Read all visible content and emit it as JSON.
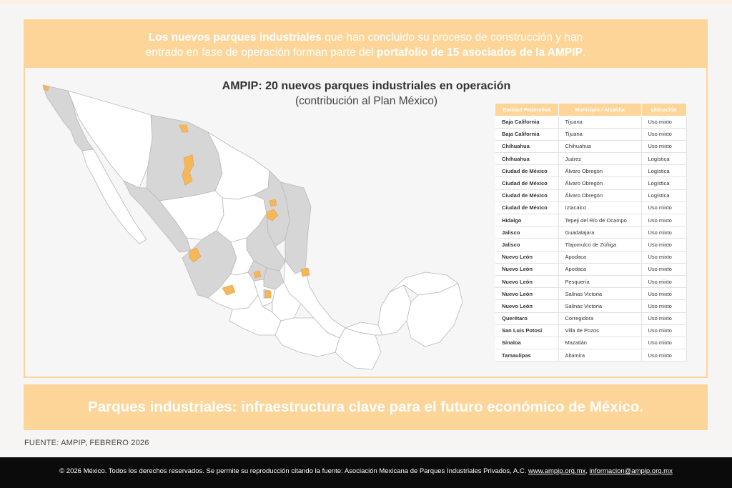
{
  "banner": {
    "bold1": "Los nuevos parques industriales",
    "text1": " que han concluido su proceso de construcción y han",
    "text2": "entrado en fase de operación forman parte del ",
    "bold2": "portafolio de 15 asociados de la AMPIP",
    "end": "."
  },
  "map": {
    "title": "AMPIP: 20 nuevos parques industriales en operación",
    "subtitle": "(contribución al Plan México)",
    "colors": {
      "highlight_state": "#d6d6d6",
      "park": "#f6b75b",
      "base": "#ffffff",
      "border": "#b8b8b8"
    }
  },
  "table": {
    "headers": [
      "Entidad Federativa",
      "Municipio / Alcaldía",
      "Ubicación"
    ],
    "rows": [
      [
        "Baja California",
        "Tijuana",
        "Uso mixto"
      ],
      [
        "Baja California",
        "Tijuana",
        "Uso mixto"
      ],
      [
        "Chihuahua",
        "Chihuahua",
        "Uso mixto"
      ],
      [
        "Chihuahua",
        "Juárez",
        "Logística"
      ],
      [
        "Ciudad de México",
        "Álvaro Obregón",
        "Logística"
      ],
      [
        "Ciudad de México",
        "Álvaro Obregón",
        "Logística"
      ],
      [
        "Ciudad de México",
        "Álvaro Obregón",
        "Logística"
      ],
      [
        "Ciudad de México",
        "Iztacalco",
        "Uso mixto"
      ],
      [
        "Hidalgo",
        "Tepeji del Río de Ocampo",
        "Uso mixto"
      ],
      [
        "Jalisco",
        "Guadalajara",
        "Uso mixto"
      ],
      [
        "Jalisco",
        "Tlajomulco de Zúñiga",
        "Uso mixto"
      ],
      [
        "Nuevo León",
        "Apodaca",
        "Uso mixto"
      ],
      [
        "Nuevo León",
        "Apodaca",
        "Uso mixto"
      ],
      [
        "Nuevo León",
        "Pesquería",
        "Uso mixto"
      ],
      [
        "Nuevo León",
        "Salinas Victoria",
        "Uso mixto"
      ],
      [
        "Nuevo León",
        "Salinas Victoria",
        "Uso mixto"
      ],
      [
        "Querétaro",
        "Corregidora",
        "Uso mixto"
      ],
      [
        "San Luis Potosí",
        "Villa de Pozos",
        "Uso mixto"
      ],
      [
        "Sinaloa",
        "Mazatlán",
        "Uso mixto"
      ],
      [
        "Tamaulipas",
        "Altamira",
        "Uso mixto"
      ]
    ]
  },
  "slogan": "Parques industriales: infraestructura clave para el futuro económico de México.",
  "source": "FUENTE: AMPIP, FEBRERO 2026",
  "footer": {
    "text": "© 2026 México. Todos los derechos reservados. Se permite su reproducción citando la fuente: Asociación Mexicana de Parques Industriales Privados, A.C. ",
    "link1": "www.ampip.org.mx",
    "sep": ", ",
    "link2": "informacion@ampip.org.mx"
  }
}
